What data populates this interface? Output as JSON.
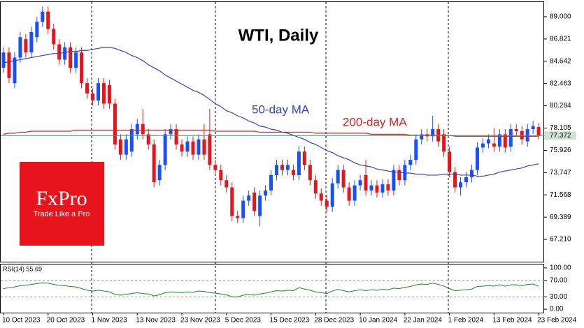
{
  "chart_data": [
    {
      "type": "candlestick",
      "title": "WTI, Daily",
      "up_color": "#1a4fff",
      "down_color": "#e8141c",
      "categories": [
        "10 Oct 2023",
        null,
        null,
        null,
        null,
        null,
        null,
        null,
        "20 Oct 2023",
        null,
        null,
        null,
        null,
        null,
        null,
        null,
        "1 Nov 2023",
        null,
        null,
        null,
        null,
        null,
        null,
        null,
        "13 Nov 2023",
        null,
        null,
        null,
        null,
        null,
        null,
        null,
        "23 Nov 2023",
        null,
        null,
        null,
        null,
        null,
        null,
        null,
        "5 Dec 2023",
        null,
        null,
        null,
        null,
        null,
        null,
        null,
        "15 Dec 2023",
        null,
        null,
        null,
        null,
        null,
        null,
        null,
        "28 Dec 2023",
        null,
        null,
        null,
        null,
        null,
        null,
        null,
        "10 Jan 2024",
        null,
        null,
        null,
        null,
        null,
        null,
        null,
        "22 Jan 2024",
        null,
        null,
        null,
        null,
        null,
        null,
        null,
        "1 Feb 2024",
        null,
        null,
        null,
        null,
        null,
        null,
        null,
        "13 Feb 2024",
        null,
        null,
        null,
        null,
        null,
        null,
        null,
        "23 Feb 2024"
      ],
      "open": [
        84.0,
        85.5,
        82.5,
        85.0,
        86.8,
        85.5,
        87.0,
        88.5,
        89.5,
        87.8,
        86.3,
        84.8,
        86.0,
        84.0,
        85.5,
        82.5,
        81.5,
        80.8,
        82.5,
        82.3,
        80.5,
        77.0,
        75.5,
        75.8,
        77.5,
        78.5,
        77.5,
        76.5,
        73.0,
        74.5,
        77.5,
        78.0,
        76.5,
        75.8,
        76.8,
        75.5,
        77.0,
        77.5,
        74.5,
        74.0,
        73.0,
        72.3,
        69.5,
        69.3,
        71.0,
        71.8,
        69.5,
        71.5,
        72.0,
        73.5,
        74.5,
        74.0,
        74.0,
        73.5,
        75.8,
        74.5,
        73.0,
        71.7,
        71.0,
        70.4,
        72.7,
        74.0,
        72.3,
        71.0,
        72.5,
        73.5,
        72.0,
        72.5,
        71.8,
        72.6,
        72.0,
        74.0,
        73.0,
        74.5,
        75.0,
        77.0,
        77.5,
        77.3,
        78.0,
        77.5,
        75.8,
        73.8,
        72.3,
        72.8,
        73.3,
        74.0,
        76.2,
        76.6,
        76.6,
        76.3,
        77.5,
        76.3,
        78.0,
        77.8,
        76.8,
        78.0,
        78.2
      ],
      "high": [
        86.0,
        86.0,
        85.5,
        87.5,
        87.3,
        88.0,
        89.0,
        90.0,
        90.0,
        88.3,
        86.8,
        86.5,
        86.5,
        86.0,
        86.0,
        83.0,
        82.0,
        83.0,
        83.0,
        82.8,
        81.0,
        77.5,
        77.5,
        78.5,
        79.0,
        80.0,
        78.0,
        77.0,
        75.0,
        78.0,
        78.5,
        78.5,
        77.0,
        77.3,
        77.3,
        77.5,
        78.5,
        80.0,
        75.0,
        74.5,
        73.5,
        72.8,
        70.0,
        71.5,
        72.0,
        72.3,
        72.0,
        72.5,
        74.0,
        75.0,
        75.0,
        75.0,
        74.5,
        76.3,
        76.3,
        75.0,
        73.5,
        72.2,
        71.5,
        73.2,
        74.5,
        74.5,
        72.8,
        73.0,
        73.5,
        75.0,
        73.0,
        73.0,
        73.1,
        73.1,
        74.5,
        74.5,
        75.0,
        75.5,
        77.5,
        78.0,
        78.0,
        79.3,
        78.5,
        78.0,
        76.3,
        74.3,
        73.3,
        73.8,
        74.5,
        76.7,
        77.1,
        77.5,
        78.1,
        78.0,
        78.0,
        78.5,
        78.5,
        78.3,
        78.5,
        78.8,
        78.6
      ],
      "low": [
        83.5,
        82.5,
        82.0,
        84.5,
        85.0,
        85.0,
        86.5,
        88.0,
        87.3,
        85.8,
        84.3,
        84.3,
        83.5,
        83.5,
        82.0,
        81.0,
        80.3,
        80.3,
        80.0,
        80.0,
        76.0,
        75.0,
        75.0,
        75.3,
        77.0,
        77.0,
        76.0,
        72.3,
        72.5,
        74.0,
        77.0,
        76.0,
        75.3,
        75.3,
        75.0,
        75.0,
        75.0,
        74.0,
        73.5,
        72.5,
        71.8,
        69.0,
        68.8,
        68.8,
        70.5,
        69.5,
        68.5,
        71.0,
        71.5,
        73.0,
        73.5,
        73.5,
        73.0,
        73.0,
        74.0,
        72.5,
        71.2,
        70.5,
        69.9,
        69.9,
        72.2,
        71.8,
        70.5,
        70.5,
        72.0,
        71.5,
        71.5,
        71.3,
        71.3,
        71.5,
        71.5,
        72.5,
        72.5,
        74.0,
        74.5,
        76.5,
        76.8,
        76.8,
        76.3,
        75.3,
        73.3,
        71.8,
        71.5,
        72.3,
        72.8,
        73.5,
        75.7,
        76.1,
        75.8,
        75.8,
        75.7,
        75.8,
        77.3,
        76.5,
        76.3,
        77.5,
        77.0
      ],
      "close": [
        85.5,
        83.0,
        85.0,
        87.0,
        85.5,
        87.5,
        88.5,
        89.5,
        87.8,
        86.3,
        84.8,
        86.0,
        84.0,
        85.5,
        82.5,
        81.5,
        80.8,
        82.5,
        80.5,
        80.5,
        76.5,
        75.5,
        77.0,
        78.0,
        78.5,
        77.5,
        76.5,
        72.8,
        74.5,
        77.5,
        78.0,
        76.5,
        75.8,
        76.8,
        75.5,
        77.0,
        75.5,
        74.5,
        74.0,
        73.0,
        72.3,
        69.5,
        69.3,
        71.0,
        71.5,
        70.0,
        71.5,
        72.0,
        73.5,
        74.5,
        74.0,
        74.5,
        73.5,
        75.8,
        74.5,
        73.0,
        71.7,
        71.0,
        70.4,
        72.7,
        74.0,
        72.3,
        71.0,
        72.5,
        73.0,
        72.0,
        72.5,
        71.8,
        72.6,
        72.0,
        74.0,
        73.0,
        74.5,
        75.0,
        77.0,
        77.5,
        77.3,
        78.0,
        76.8,
        75.8,
        73.8,
        72.3,
        72.8,
        73.3,
        74.0,
        76.2,
        76.6,
        77.0,
        76.3,
        77.5,
        76.2,
        78.0,
        77.8,
        77.0,
        78.0,
        78.3,
        77.4
      ],
      "series": [
        {
          "name": "50-day MA",
          "color": "#3344c0",
          "values": [
            84.5,
            84.6,
            84.7,
            84.8,
            84.9,
            85.0,
            85.1,
            85.2,
            85.3,
            85.4,
            85.4,
            85.5,
            85.6,
            85.6,
            85.7,
            85.7,
            85.8,
            85.9,
            86.0,
            86.0,
            85.9,
            85.7,
            85.5,
            85.2,
            85.0,
            84.7,
            84.3,
            84.0,
            83.7,
            83.3,
            83.0,
            82.7,
            82.4,
            82.1,
            81.8,
            81.6,
            81.3,
            80.9,
            80.5,
            80.2,
            79.8,
            79.6,
            79.3,
            79.1,
            78.8,
            78.6,
            78.3,
            78.2,
            78.0,
            77.9,
            77.7,
            77.6,
            77.4,
            77.2,
            77.0,
            76.7,
            76.5,
            76.2,
            75.9,
            75.7,
            75.4,
            75.2,
            75.0,
            74.7,
            74.5,
            74.4,
            74.3,
            74.1,
            74.0,
            73.9,
            73.8,
            73.8,
            73.7,
            73.7,
            73.6,
            73.6,
            73.5,
            73.5,
            73.5,
            73.6,
            73.6,
            73.6,
            73.5,
            73.5,
            73.5,
            73.4,
            73.4,
            73.5,
            73.6,
            73.8,
            73.9,
            74.0,
            74.1,
            74.2,
            74.4,
            74.5,
            74.6
          ]
        },
        {
          "name": "200-day MA",
          "color": "#e02020",
          "values": [
            77.5,
            77.6,
            77.6,
            77.7,
            77.7,
            77.8,
            77.8,
            77.8,
            77.8,
            77.8,
            77.8,
            77.8,
            77.8,
            77.9,
            77.9,
            77.9,
            77.9,
            77.9,
            77.9,
            77.9,
            77.9,
            77.9,
            77.9,
            77.9,
            77.9,
            77.9,
            77.9,
            77.9,
            77.9,
            77.9,
            77.9,
            77.9,
            77.9,
            77.9,
            77.9,
            77.9,
            77.9,
            77.9,
            77.8,
            77.8,
            77.8,
            77.8,
            77.8,
            77.8,
            77.8,
            77.8,
            77.7,
            77.7,
            77.7,
            77.7,
            77.7,
            77.7,
            77.7,
            77.7,
            77.7,
            77.7,
            77.6,
            77.6,
            77.6,
            77.6,
            77.6,
            77.6,
            77.6,
            77.6,
            77.6,
            77.6,
            77.5,
            77.5,
            77.5,
            77.5,
            77.5,
            77.5,
            77.5,
            77.4,
            77.4,
            77.4,
            77.4,
            77.4,
            77.4,
            77.4,
            77.4,
            77.3,
            77.3,
            77.3,
            77.3,
            77.3,
            77.3,
            77.3,
            77.3,
            77.3,
            77.3,
            77.3,
            77.3,
            77.3,
            77.3,
            77.3,
            77.3
          ]
        }
      ],
      "last_price": {
        "value": 77.372,
        "label": "77.372"
      },
      "ylim": [
        65.03,
        90.43
      ],
      "yticks": [
        {
          "value": 89,
          "label": "89.000"
        },
        {
          "value": 86.821,
          "label": "86.821"
        },
        {
          "value": 84.642,
          "label": "84.642"
        },
        {
          "value": 82.463,
          "label": "82.463"
        },
        {
          "value": 80.284,
          "label": "80.284"
        },
        {
          "value": 78.105,
          "label": "78.105"
        },
        {
          "value": 75.926,
          "label": "75.926"
        },
        {
          "value": 73.747,
          "label": "73.747"
        },
        {
          "value": 71.568,
          "label": "71.568"
        },
        {
          "value": 69.389,
          "label": "69.389"
        },
        {
          "value": 67.21,
          "label": "67.210"
        }
      ]
    },
    {
      "type": "line",
      "title": "RSI(14) 55.69",
      "color": "#1a8a1a",
      "values": [
        50,
        52,
        54,
        57,
        58,
        60,
        62,
        64,
        63,
        60,
        58,
        57,
        55,
        54,
        50,
        46,
        44,
        46,
        44,
        42,
        36,
        34,
        36,
        38,
        40,
        38,
        37,
        32,
        35,
        40,
        42,
        41,
        40,
        42,
        41,
        44,
        43,
        40,
        39,
        37,
        35,
        30,
        30,
        34,
        36,
        34,
        37,
        39,
        42,
        45,
        44,
        46,
        45,
        52,
        49,
        46,
        42,
        40,
        38,
        44,
        48,
        45,
        42,
        45,
        47,
        45,
        47,
        46,
        48,
        47,
        51,
        50,
        53,
        55,
        59,
        61,
        60,
        63,
        60,
        56,
        50,
        45,
        46,
        47,
        49,
        55,
        56,
        57,
        56,
        59,
        56,
        59,
        59,
        57,
        60,
        61,
        55.69
      ],
      "levels": [
        70,
        30
      ],
      "ylim": [
        -8.3,
        108.3
      ],
      "yticks": [
        {
          "value": 100,
          "label": "100.00"
        },
        {
          "value": 70,
          "label": "70.00"
        },
        {
          "value": 30,
          "label": "30.00"
        },
        {
          "value": 0,
          "label": "0.00"
        }
      ]
    }
  ],
  "logo": {
    "brand": "FxPro",
    "tagline": "Trade Like a Pro"
  }
}
